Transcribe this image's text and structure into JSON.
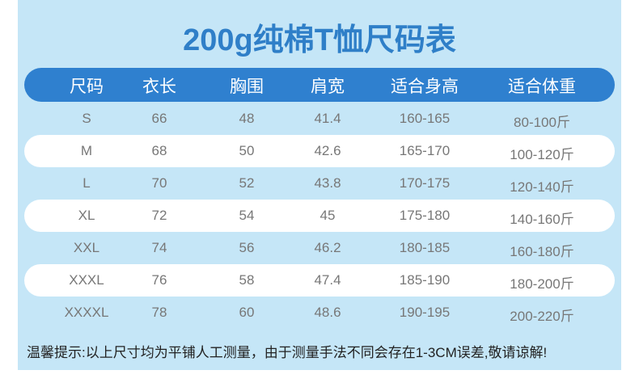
{
  "title": "200g纯棉T恤尺码表",
  "table": {
    "header": [
      "尺码",
      "衣长",
      "胸围",
      "肩宽",
      "适合身高",
      "适合体重"
    ],
    "rows": [
      [
        "S",
        "66",
        "48",
        "41.4",
        "160-165",
        "80-100斤"
      ],
      [
        "M",
        "68",
        "50",
        "42.6",
        "165-170",
        "100-120斤"
      ],
      [
        "L",
        "70",
        "52",
        "43.8",
        "170-175",
        "120-140斤"
      ],
      [
        "XL",
        "72",
        "54",
        "45",
        "175-180",
        "140-160斤"
      ],
      [
        "XXL",
        "74",
        "56",
        "46.2",
        "180-185",
        "160-180斤"
      ],
      [
        "XXXL",
        "76",
        "58",
        "47.4",
        "185-190",
        "180-200斤"
      ],
      [
        "XXXXL",
        "78",
        "60",
        "48.6",
        "190-195",
        "200-220斤"
      ]
    ]
  },
  "note": "温馨提示:以上尺寸均为平铺人工测量，由于测量手法不同会存在1-3CM误差,敬请谅解!"
}
